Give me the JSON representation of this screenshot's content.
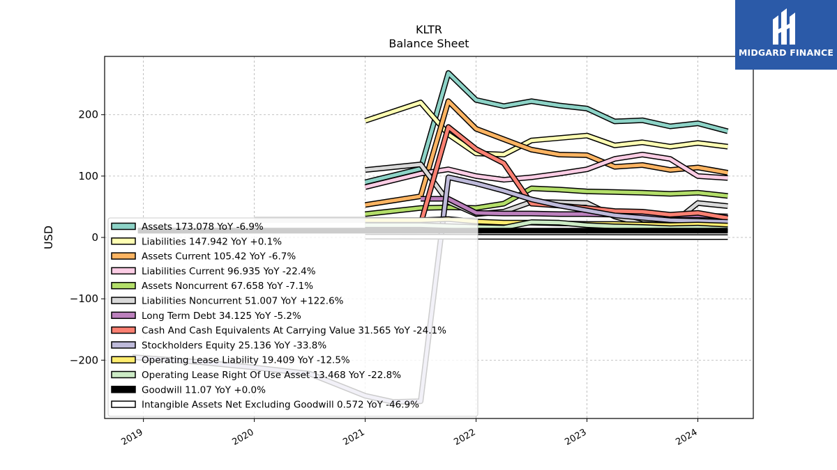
{
  "chart_data": {
    "type": "line",
    "title": "KLTR",
    "subtitle": "Balance  Sheet",
    "ylabel": "USD",
    "xlabel": "",
    "ylim": [
      -295,
      295
    ],
    "xlim": [
      2018.65,
      2024.5
    ],
    "yticks": [
      -200,
      -100,
      0,
      100,
      200
    ],
    "ytick_labels": [
      "−200",
      "−100",
      "0",
      "100",
      "200"
    ],
    "xticks": [
      2019,
      2020,
      2021,
      2022,
      2023,
      2024
    ],
    "xtick_labels": [
      "2019",
      "2020",
      "2021",
      "2022",
      "2023",
      "2024"
    ],
    "grid": true,
    "legend_position": "lower-left",
    "series": [
      {
        "name": "Assets",
        "legend": "Assets  173.078 YoY -6.9%",
        "color": "#8dd3c7",
        "points": [
          [
            2021.0,
            90
          ],
          [
            2021.5,
            112
          ],
          [
            2021.75,
            268
          ],
          [
            2022.0,
            224
          ],
          [
            2022.25,
            214
          ],
          [
            2022.5,
            222
          ],
          [
            2022.75,
            215
          ],
          [
            2023.0,
            210
          ],
          [
            2023.25,
            189
          ],
          [
            2023.5,
            191
          ],
          [
            2023.75,
            181
          ],
          [
            2024.0,
            186
          ],
          [
            2024.27,
            173.078
          ]
        ]
      },
      {
        "name": "Liabilities",
        "legend": "Liabilities  147.942 YoY +0.1%",
        "color": "#ffffb3",
        "points": [
          [
            2021.0,
            190
          ],
          [
            2021.5,
            220
          ],
          [
            2021.75,
            168
          ],
          [
            2022.0,
            137
          ],
          [
            2022.25,
            135
          ],
          [
            2022.5,
            158
          ],
          [
            2022.75,
            162
          ],
          [
            2023.0,
            166
          ],
          [
            2023.25,
            150
          ],
          [
            2023.5,
            155
          ],
          [
            2023.75,
            148
          ],
          [
            2024.0,
            154
          ],
          [
            2024.27,
            147.942
          ]
        ]
      },
      {
        "name": "Assets Current",
        "legend": "Assets Current  105.42 YoY -6.7%",
        "color": "#fdb462",
        "points": [
          [
            2021.0,
            53
          ],
          [
            2021.5,
            67
          ],
          [
            2021.75,
            222
          ],
          [
            2022.0,
            177
          ],
          [
            2022.25,
            160
          ],
          [
            2022.5,
            143
          ],
          [
            2022.75,
            135
          ],
          [
            2023.0,
            134
          ],
          [
            2023.25,
            115
          ],
          [
            2023.5,
            118
          ],
          [
            2023.75,
            110
          ],
          [
            2024.0,
            114
          ],
          [
            2024.27,
            105.42
          ]
        ]
      },
      {
        "name": "Liabilities Current",
        "legend": "Liabilities Current  96.935 YoY -22.4%",
        "color": "#fccde5",
        "points": [
          [
            2021.0,
            82
          ],
          [
            2021.5,
            104
          ],
          [
            2021.75,
            111
          ],
          [
            2022.0,
            100
          ],
          [
            2022.25,
            94
          ],
          [
            2022.5,
            98
          ],
          [
            2022.75,
            104
          ],
          [
            2023.0,
            111
          ],
          [
            2023.25,
            128
          ],
          [
            2023.5,
            135
          ],
          [
            2023.75,
            128
          ],
          [
            2024.0,
            100
          ],
          [
            2024.27,
            96.935
          ]
        ]
      },
      {
        "name": "Assets Noncurrent",
        "legend": "Assets Noncurrent  67.658 YoY -7.1%",
        "color": "#b3de69",
        "points": [
          [
            2021.0,
            38
          ],
          [
            2021.5,
            48
          ],
          [
            2021.75,
            49
          ],
          [
            2022.0,
            48
          ],
          [
            2022.25,
            55
          ],
          [
            2022.5,
            80
          ],
          [
            2022.75,
            78
          ],
          [
            2023.0,
            75
          ],
          [
            2023.25,
            74
          ],
          [
            2023.5,
            73
          ],
          [
            2023.75,
            71
          ],
          [
            2024.0,
            73
          ],
          [
            2024.27,
            67.658
          ]
        ]
      },
      {
        "name": "Liabilities Noncurrent",
        "legend": "Liabilities Noncurrent  51.007 YoY +122.6%",
        "color": "#d9d9d9",
        "points": [
          [
            2021.0,
            110
          ],
          [
            2021.5,
            119
          ],
          [
            2021.75,
            58
          ],
          [
            2022.0,
            38
          ],
          [
            2022.25,
            42
          ],
          [
            2022.5,
            58
          ],
          [
            2022.75,
            57
          ],
          [
            2023.0,
            56
          ],
          [
            2023.25,
            34
          ],
          [
            2023.5,
            22
          ],
          [
            2023.75,
            20
          ],
          [
            2024.0,
            56
          ],
          [
            2024.27,
            51.007
          ]
        ]
      },
      {
        "name": "Long Term Debt",
        "legend": "Long Term Debt  34.125 YoY -5.2%",
        "color": "#bc80bd",
        "points": [
          [
            2021.5,
            63
          ],
          [
            2021.75,
            63
          ],
          [
            2022.0,
            40
          ],
          [
            2022.25,
            39
          ],
          [
            2022.5,
            39
          ],
          [
            2022.75,
            38
          ],
          [
            2023.0,
            38
          ],
          [
            2023.25,
            37
          ],
          [
            2023.5,
            36
          ],
          [
            2023.75,
            36
          ],
          [
            2024.0,
            36
          ],
          [
            2024.27,
            34.125
          ]
        ]
      },
      {
        "name": "Cash And Cash Equivalents At Carrying Value",
        "legend": "Cash And Cash Equivalents At Carrying Value  31.565 YoY -24.1%",
        "color": "#fb8072",
        "points": [
          [
            2021.0,
            20
          ],
          [
            2021.25,
            17
          ],
          [
            2021.5,
            22
          ],
          [
            2021.75,
            180
          ],
          [
            2022.0,
            144
          ],
          [
            2022.25,
            121
          ],
          [
            2022.5,
            55
          ],
          [
            2022.75,
            52
          ],
          [
            2023.0,
            48
          ],
          [
            2023.25,
            43
          ],
          [
            2023.5,
            42
          ],
          [
            2023.75,
            37
          ],
          [
            2024.0,
            40
          ],
          [
            2024.27,
            31.565
          ]
        ]
      },
      {
        "name": "Stockholders Equity",
        "legend": "Stockholders Equity  25.136 YoY -33.8%",
        "color": "#bebada",
        "points": [
          [
            2018.9,
            -195
          ],
          [
            2019.5,
            -203
          ],
          [
            2020.0,
            -212
          ],
          [
            2020.5,
            -222
          ],
          [
            2021.0,
            -258
          ],
          [
            2021.25,
            -268
          ],
          [
            2021.5,
            -267
          ],
          [
            2021.75,
            98
          ],
          [
            2022.0,
            88
          ],
          [
            2022.25,
            76
          ],
          [
            2022.5,
            62
          ],
          [
            2022.75,
            52
          ],
          [
            2023.0,
            44
          ],
          [
            2023.25,
            36
          ],
          [
            2023.5,
            32
          ],
          [
            2023.75,
            28
          ],
          [
            2024.0,
            27
          ],
          [
            2024.27,
            25.136
          ]
        ]
      },
      {
        "name": "Operating Lease Liability",
        "legend": "Operating Lease Liability  19.409 YoY -12.5%",
        "color": "#ffed6f",
        "points": [
          [
            2021.0,
            28
          ],
          [
            2021.5,
            28
          ],
          [
            2021.75,
            30
          ],
          [
            2022.0,
            26
          ],
          [
            2022.25,
            24
          ],
          [
            2022.5,
            24
          ],
          [
            2022.75,
            23
          ],
          [
            2023.0,
            22
          ],
          [
            2023.25,
            22
          ],
          [
            2023.5,
            21
          ],
          [
            2023.75,
            20
          ],
          [
            2024.0,
            21
          ],
          [
            2024.27,
            19.409
          ]
        ]
      },
      {
        "name": "Operating Lease Right Of Use Asset",
        "legend": "Operating Lease Right Of Use Asset  13.468 YoY -22.8%",
        "color": "#ccebc5",
        "points": [
          [
            2021.0,
            20
          ],
          [
            2021.5,
            20
          ],
          [
            2022.0,
            17
          ],
          [
            2022.25,
            16
          ],
          [
            2022.5,
            25
          ],
          [
            2022.75,
            24
          ],
          [
            2023.0,
            20
          ],
          [
            2023.25,
            18
          ],
          [
            2023.5,
            17
          ],
          [
            2023.75,
            15
          ],
          [
            2024.0,
            16
          ],
          [
            2024.27,
            13.468
          ]
        ]
      },
      {
        "name": "Goodwill",
        "legend": "Goodwill  11.07 YoY +0.0%",
        "color": "#000000",
        "points": [
          [
            2018.95,
            11.07
          ],
          [
            2024.27,
            11.07
          ]
        ]
      },
      {
        "name": "Intangible Assets Net Excluding Goodwill",
        "legend": "Intangible Assets Net Excluding Goodwill  0.572 YoY -46.9%",
        "color": "#ffffff",
        "points": [
          [
            2021.0,
            1.2
          ],
          [
            2022.0,
            1.0
          ],
          [
            2023.0,
            0.8
          ],
          [
            2024.27,
            0.572
          ]
        ]
      }
    ],
    "extra_bands": [
      {
        "color": "#c8c8c8",
        "y": 11.0,
        "x0": 2018.95,
        "x1": 2022.05
      },
      {
        "color": "#dcdcdc",
        "y": 29.0,
        "x0": 2020.0,
        "x1": 2021.0
      }
    ]
  },
  "logo": {
    "text": "MIDGARD FINANCE"
  }
}
